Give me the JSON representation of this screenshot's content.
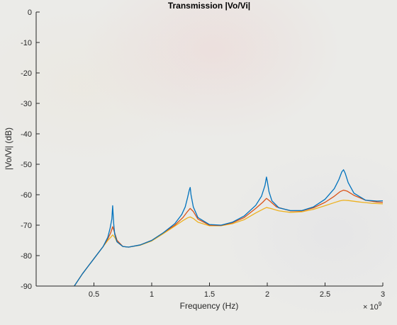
{
  "chart_data": {
    "type": "line",
    "title": "Transmission |Vo/Vi|",
    "xlabel": "Frequency (Hz)",
    "ylabel": "|Vo/Vi| (dB)",
    "x_exponent_label": "× 10",
    "x_exponent": "9",
    "x_scale": 1000000000,
    "xlim": [
      0,
      3000000000
    ],
    "ylim": [
      -90,
      0
    ],
    "xticks": [
      500000000,
      1000000000,
      1500000000,
      2000000000,
      2500000000,
      3000000000
    ],
    "xtick_labels": [
      "0.5",
      "1",
      "1.5",
      "2",
      "2.5",
      "3"
    ],
    "yticks": [
      0,
      -10,
      -20,
      -30,
      -40,
      -50,
      -60,
      -70,
      -80,
      -90
    ],
    "ytick_labels": [
      "0",
      "-10",
      "-20",
      "-30",
      "-40",
      "-50",
      "-60",
      "-70",
      "-80",
      "-90"
    ],
    "grid": false,
    "legend": false,
    "series": [
      {
        "color": "#0072BD",
        "x": [
          330000000.0,
          400000000.0,
          500000000.0,
          580000000.0,
          620000000.0,
          640000000.0,
          655000000.0,
          662000000.0,
          667000000.0,
          672000000.0,
          680000000.0,
          700000000.0,
          750000000.0,
          800000000.0,
          900000000.0,
          1000000000.0,
          1100000000.0,
          1200000000.0,
          1260000000.0,
          1290000000.0,
          1310000000.0,
          1325000000.0,
          1333000000.0,
          1340000000.0,
          1360000000.0,
          1400000000.0,
          1500000000.0,
          1600000000.0,
          1700000000.0,
          1800000000.0,
          1900000000.0,
          1950000000.0,
          1980000000.0,
          1993000000.0,
          2000000000.0,
          2015000000.0,
          2040000000.0,
          2100000000.0,
          2200000000.0,
          2300000000.0,
          2400000000.0,
          2500000000.0,
          2580000000.0,
          2620000000.0,
          2645000000.0,
          2660000000.0,
          2675000000.0,
          2700000000.0,
          2750000000.0,
          2850000000.0,
          2950000000.0,
          3000000000.0
        ],
        "y": [
          -90,
          -86,
          -81,
          -77,
          -74,
          -71,
          -68,
          -63.6,
          -67,
          -70,
          -73,
          -75.5,
          -77,
          -77.2,
          -76.5,
          -75,
          -72.5,
          -69.5,
          -66.5,
          -64,
          -61,
          -58.5,
          -57.6,
          -60,
          -64,
          -67.5,
          -69.8,
          -70,
          -69,
          -67,
          -63.5,
          -60.5,
          -57,
          -54.2,
          -55.5,
          -59,
          -62,
          -64.3,
          -65.2,
          -65.2,
          -64,
          -61.5,
          -58,
          -55,
          -52.5,
          -51.8,
          -53,
          -56,
          -59.5,
          -61.8,
          -62.1,
          -62
        ]
      },
      {
        "color": "#D95319",
        "x": [
          330000000.0,
          400000000.0,
          500000000.0,
          580000000.0,
          620000000.0,
          645000000.0,
          662000000.0,
          675000000.0,
          700000000.0,
          750000000.0,
          800000000.0,
          900000000.0,
          1000000000.0,
          1100000000.0,
          1200000000.0,
          1270000000.0,
          1310000000.0,
          1333000000.0,
          1360000000.0,
          1400000000.0,
          1500000000.0,
          1600000000.0,
          1700000000.0,
          1800000000.0,
          1900000000.0,
          1960000000.0,
          1993000000.0,
          2020000000.0,
          2080000000.0,
          2200000000.0,
          2300000000.0,
          2400000000.0,
          2500000000.0,
          2580000000.0,
          2630000000.0,
          2660000000.0,
          2690000000.0,
          2750000000.0,
          2850000000.0,
          2950000000.0,
          3000000000.0
        ],
        "y": [
          -90,
          -86,
          -81,
          -77,
          -74.5,
          -72.5,
          -70.5,
          -72,
          -75,
          -77,
          -77.2,
          -76.5,
          -75,
          -72.5,
          -70,
          -67.5,
          -65.5,
          -64.5,
          -65.5,
          -68,
          -70,
          -70.1,
          -69.2,
          -67.5,
          -64.5,
          -62.5,
          -61.2,
          -62,
          -64,
          -65.3,
          -65.3,
          -64.3,
          -62.5,
          -60.5,
          -59,
          -58.5,
          -58.8,
          -60.2,
          -61.8,
          -62.4,
          -62.5
        ]
      },
      {
        "color": "#EDB120",
        "x": [
          330000000.0,
          400000000.0,
          500000000.0,
          580000000.0,
          620000000.0,
          645000000.0,
          662000000.0,
          680000000.0,
          700000000.0,
          750000000.0,
          800000000.0,
          900000000.0,
          1000000000.0,
          1100000000.0,
          1200000000.0,
          1270000000.0,
          1310000000.0,
          1333000000.0,
          1360000000.0,
          1400000000.0,
          1500000000.0,
          1600000000.0,
          1700000000.0,
          1800000000.0,
          1900000000.0,
          1960000000.0,
          1993000000.0,
          2030000000.0,
          2100000000.0,
          2200000000.0,
          2300000000.0,
          2400000000.0,
          2500000000.0,
          2580000000.0,
          2630000000.0,
          2660000000.0,
          2700000000.0,
          2800000000.0,
          2900000000.0,
          3000000000.0
        ],
        "y": [
          -90,
          -86,
          -81,
          -77,
          -75,
          -74,
          -73.2,
          -74,
          -75.5,
          -77,
          -77.2,
          -76.6,
          -75.2,
          -72.8,
          -70.3,
          -68.5,
          -67.6,
          -67.3,
          -67.8,
          -69,
          -70.2,
          -70.2,
          -69.5,
          -68.2,
          -66,
          -64.8,
          -64.2,
          -64.5,
          -65.3,
          -65.8,
          -65.6,
          -64.8,
          -63.6,
          -62.6,
          -62,
          -61.8,
          -61.9,
          -62.4,
          -62.8,
          -63
        ]
      }
    ]
  }
}
